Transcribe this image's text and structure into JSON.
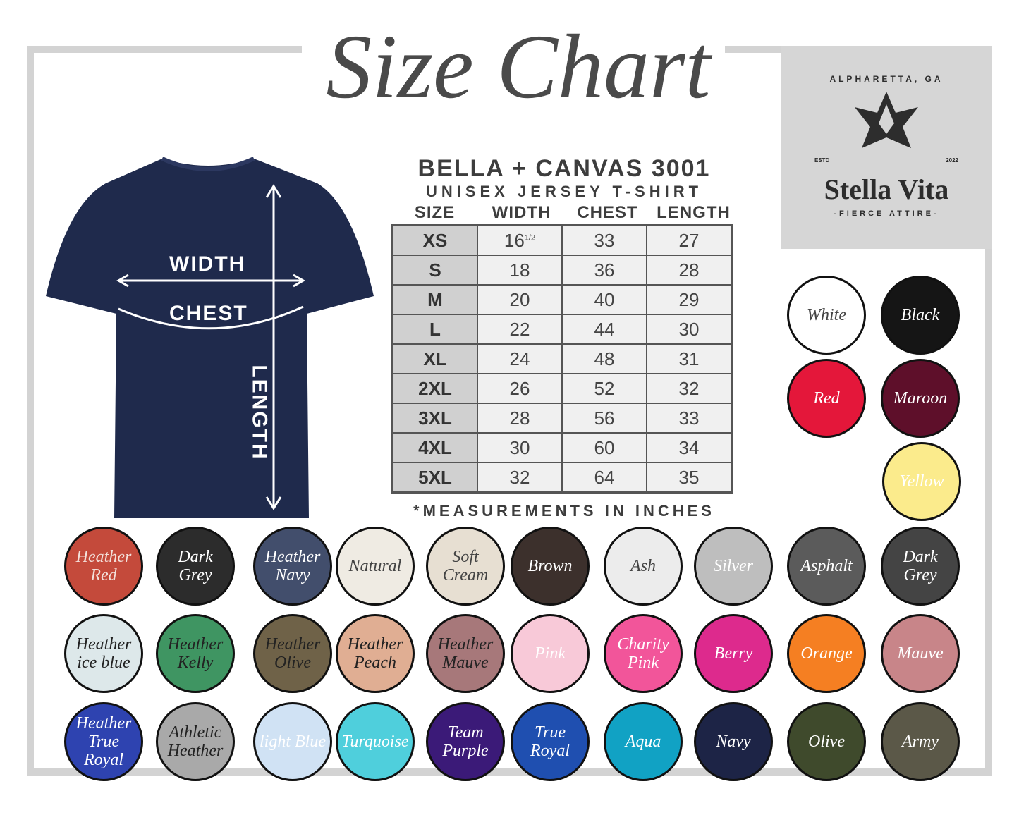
{
  "title": "Size Chart",
  "logo": {
    "city": "ALPHARETTA, GA",
    "estd": "ESTD",
    "year": "2022",
    "brand": "Stella Vita",
    "tagline": "-FIERCE ATTIRE-"
  },
  "shirt": {
    "color": "#1f2a4c",
    "labels": {
      "width": "WIDTH",
      "chest": "CHEST",
      "length": "LENGTH"
    }
  },
  "product": {
    "name": "BELLA + CANVAS 3001",
    "subtitle": "UNISEX JERSEY T-SHIRT"
  },
  "table": {
    "headers": [
      "SIZE",
      "WIDTH",
      "CHEST",
      "LENGTH"
    ],
    "rows": [
      [
        "XS",
        "16",
        "33",
        "27"
      ],
      [
        "S",
        "18",
        "36",
        "28"
      ],
      [
        "M",
        "20",
        "40",
        "29"
      ],
      [
        "L",
        "22",
        "44",
        "30"
      ],
      [
        "XL",
        "24",
        "48",
        "31"
      ],
      [
        "2XL",
        "26",
        "52",
        "32"
      ],
      [
        "3XL",
        "28",
        "56",
        "33"
      ],
      [
        "4XL",
        "30",
        "60",
        "34"
      ],
      [
        "5XL",
        "32",
        "64",
        "35"
      ]
    ],
    "xs_width_fraction": "1/2"
  },
  "note": "*MEASUREMENTS IN INCHES",
  "swatches": [
    {
      "name": "White",
      "bg": "#ffffff",
      "fg": "#444444"
    },
    {
      "name": "Black",
      "bg": "#151515",
      "fg": "#ffffff"
    },
    {
      "name": "Red",
      "bg": "#e4173a",
      "fg": "#ffffff"
    },
    {
      "name": "Maroon",
      "bg": "#5e0f2a",
      "fg": "#ffffff"
    },
    {
      "name": "Yellow",
      "bg": "#fbeb8c",
      "fg": "#ffffff"
    },
    {
      "name": "Heather Red",
      "bg": "#c44a3b",
      "fg": "#f3e0da"
    },
    {
      "name": "Dark Grey",
      "bg": "#2c2c2c",
      "fg": "#ffffff"
    },
    {
      "name": "Heather Navy",
      "bg": "#424e6c",
      "fg": "#ffffff"
    },
    {
      "name": "Natural",
      "bg": "#efebe3",
      "fg": "#444444"
    },
    {
      "name": "Soft Cream",
      "bg": "#e7dfd2",
      "fg": "#444444"
    },
    {
      "name": "Brown",
      "bg": "#3c302c",
      "fg": "#ffffff"
    },
    {
      "name": "Ash",
      "bg": "#ececec",
      "fg": "#444444"
    },
    {
      "name": "Silver",
      "bg": "#bebebe",
      "fg": "#ffffff"
    },
    {
      "name": "Asphalt",
      "bg": "#5b5b5b",
      "fg": "#ffffff"
    },
    {
      "name": "Dark Grey",
      "bg": "#444444",
      "fg": "#ffffff"
    },
    {
      "name": "Heather ice blue",
      "bg": "#dde8ea",
      "fg": "#222222"
    },
    {
      "name": "Heather Kelly",
      "bg": "#3f9562",
      "fg": "#222222"
    },
    {
      "name": "Heather Olive",
      "bg": "#6f6248",
      "fg": "#222222"
    },
    {
      "name": "Heather Peach",
      "bg": "#e0ae93",
      "fg": "#222222"
    },
    {
      "name": "Heather Mauve",
      "bg": "#a7787a",
      "fg": "#222222"
    },
    {
      "name": "Pink",
      "bg": "#f8c9d8",
      "fg": "#ffffff"
    },
    {
      "name": "Charity Pink",
      "bg": "#f2559a",
      "fg": "#ffffff"
    },
    {
      "name": "Berry",
      "bg": "#dd2a8d",
      "fg": "#ffffff"
    },
    {
      "name": "Orange",
      "bg": "#f57f22",
      "fg": "#ffffff"
    },
    {
      "name": "Mauve",
      "bg": "#c88589",
      "fg": "#ffffff"
    },
    {
      "name": "Heather True Royal",
      "bg": "#2e43b0",
      "fg": "#ffffff"
    },
    {
      "name": "Athletic Heather",
      "bg": "#a9a9a9",
      "fg": "#222222"
    },
    {
      "name": "light Blue",
      "bg": "#d0e2f4",
      "fg": "#ffffff"
    },
    {
      "name": "Turquoise",
      "bg": "#4fcfdc",
      "fg": "#ffffff"
    },
    {
      "name": "Team Purple",
      "bg": "#3b1a78",
      "fg": "#ffffff"
    },
    {
      "name": "True Royal",
      "bg": "#1f4fb0",
      "fg": "#ffffff"
    },
    {
      "name": "Aqua",
      "bg": "#11a2c4",
      "fg": "#ffffff"
    },
    {
      "name": "Navy",
      "bg": "#1d2446",
      "fg": "#ffffff"
    },
    {
      "name": "Olive",
      "bg": "#3f4a2c",
      "fg": "#ffffff"
    },
    {
      "name": "Army",
      "bg": "#5b5848",
      "fg": "#ffffff"
    }
  ]
}
